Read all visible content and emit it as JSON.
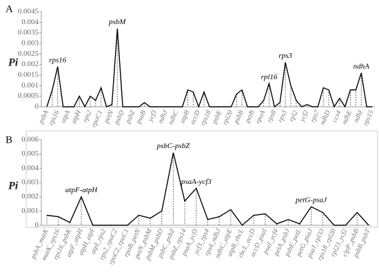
{
  "chart_data": [
    {
      "type": "line",
      "panel": "A",
      "ylabel": "Pi",
      "color": "#000000",
      "categories": [
        "psbA",
        null,
        "rps16",
        null,
        "atpA",
        null,
        "atpH",
        null,
        "rps2",
        null,
        "rpoC1",
        null,
        "petN",
        null,
        "psbD",
        null,
        "psbZ",
        null,
        "psaB",
        null,
        "ycf3",
        null,
        "ndhJ",
        null,
        "ndhC",
        null,
        "atpB",
        null,
        "accD",
        null,
        "rps18",
        null,
        "psbE",
        null,
        "rpl20",
        null,
        "psbB",
        null,
        "petB",
        null,
        "rpoA",
        null,
        "rps8",
        null,
        "rps3",
        null,
        "rpl2",
        null,
        "ycf2",
        null,
        "rps7",
        null,
        "ndhD",
        null,
        "ccs4",
        null,
        "ndhE",
        null,
        "ndhI",
        null,
        "rps15"
      ],
      "values": [
        0,
        0.0008,
        0.0019,
        0,
        0,
        0,
        0.0005,
        0,
        0.0005,
        0.0003,
        0.0009,
        0,
        0.0001,
        0.0037,
        0,
        0,
        0,
        0,
        0.0002,
        0,
        0,
        0,
        0,
        0,
        0,
        0,
        0.0008,
        0.0007,
        0,
        0.0007,
        0,
        0,
        0,
        0,
        0,
        0.0006,
        0.0008,
        0,
        0,
        0,
        0.0003,
        0.0011,
        0,
        0.0002,
        0.0021,
        0.001,
        0.0003,
        0,
        0.0001,
        0,
        0,
        0.0009,
        0.0008,
        0,
        0.0004,
        0,
        0.0008,
        0.0008,
        0.0016,
        0,
        0
      ],
      "ylim": [
        0,
        0.0045
      ],
      "yticks": [
        0,
        0.0005,
        0.001,
        0.0015,
        0.002,
        0.0025,
        0.003,
        0.0035,
        0.004,
        0.0045
      ],
      "annotations": [
        {
          "text": "rps16",
          "index": 2
        },
        {
          "text": "psbM",
          "index": 13
        },
        {
          "text": "rpl16",
          "index": 41
        },
        {
          "text": "rps3",
          "index": 44
        },
        {
          "text": "ndhA",
          "index": 58
        }
      ]
    },
    {
      "type": "line",
      "panel": "B",
      "ylabel": "Pi",
      "color": "#000000",
      "categories": [
        "psbA_matK",
        "matK_rps16",
        "rps16_psbK",
        "atpF_atpH",
        "atpH_atpI",
        "atpI_rps2",
        "rps2_rpoC2",
        "rpoC2_rpoC1",
        "rpoB_petN",
        "petN_psbM",
        "psbM_psbD",
        "psbC_psbZ",
        "psbZ_rps14",
        "psaA_ycf3",
        "ycf3_rps4",
        "rps4_ndhJ",
        "ndhC_atpE",
        "atpB_rbcL",
        "rbcL_accD",
        "accD_psaI",
        "psaI_ycf4",
        "petA_psbJ",
        "psbE_petL",
        "petG_psaJ",
        "psaJ_rpl33",
        "rps18_rpl20",
        "rpl23_ycf2",
        "clpP_psbB",
        "psbB_psbT"
      ],
      "values": [
        0.0007,
        0.0006,
        0.0002,
        0.002,
        0,
        0,
        0,
        0,
        0.0007,
        0.0005,
        0.001,
        0.0051,
        0.0017,
        0.0026,
        0.0004,
        0.0006,
        0.0011,
        0,
        0.0007,
        0.0008,
        0.0001,
        0.0004,
        0.0001,
        0.0013,
        0.0009,
        0,
        0,
        0.0009,
        0
      ],
      "ylim": [
        0,
        0.006
      ],
      "yticks": [
        0,
        0.001,
        0.002,
        0.003,
        0.004,
        0.005,
        0.006
      ],
      "annotations": [
        {
          "text": "atpF-atpH",
          "index": 3
        },
        {
          "text": "psbC-psbZ",
          "index": 11
        },
        {
          "text": "psaA-ycf3",
          "index": 13
        },
        {
          "text": "petG-psaJ",
          "index": 23
        }
      ]
    }
  ]
}
